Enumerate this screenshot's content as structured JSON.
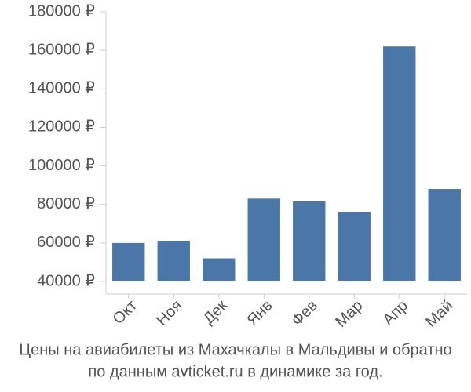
{
  "chart_data": {
    "type": "bar",
    "title": "Цены на авиабилеты из Махачкалы в Мальдивы и обратно",
    "subtitle": "по данным avticket.ru в динамике за год.",
    "categories": [
      "Окт",
      "Ноя",
      "Дек",
      "Янв",
      "Фев",
      "Мар",
      "Апр",
      "Май"
    ],
    "values": [
      60000,
      61000,
      52000,
      83000,
      81500,
      76000,
      162000,
      88000
    ],
    "color": "#4a76a8",
    "ylim": [
      40000,
      180000
    ],
    "yticks": [
      {
        "value": 40000,
        "label": "40000 ₽"
      },
      {
        "value": 60000,
        "label": "60000 ₽"
      },
      {
        "value": 80000,
        "label": "80000 ₽"
      },
      {
        "value": 100000,
        "label": "100000 ₽"
      },
      {
        "value": 120000,
        "label": "120000 ₽"
      },
      {
        "value": 140000,
        "label": "140000 ₽"
      },
      {
        "value": 160000,
        "label": "160000 ₽"
      },
      {
        "value": 180000,
        "label": "180000 ₽"
      }
    ],
    "grid": false
  }
}
